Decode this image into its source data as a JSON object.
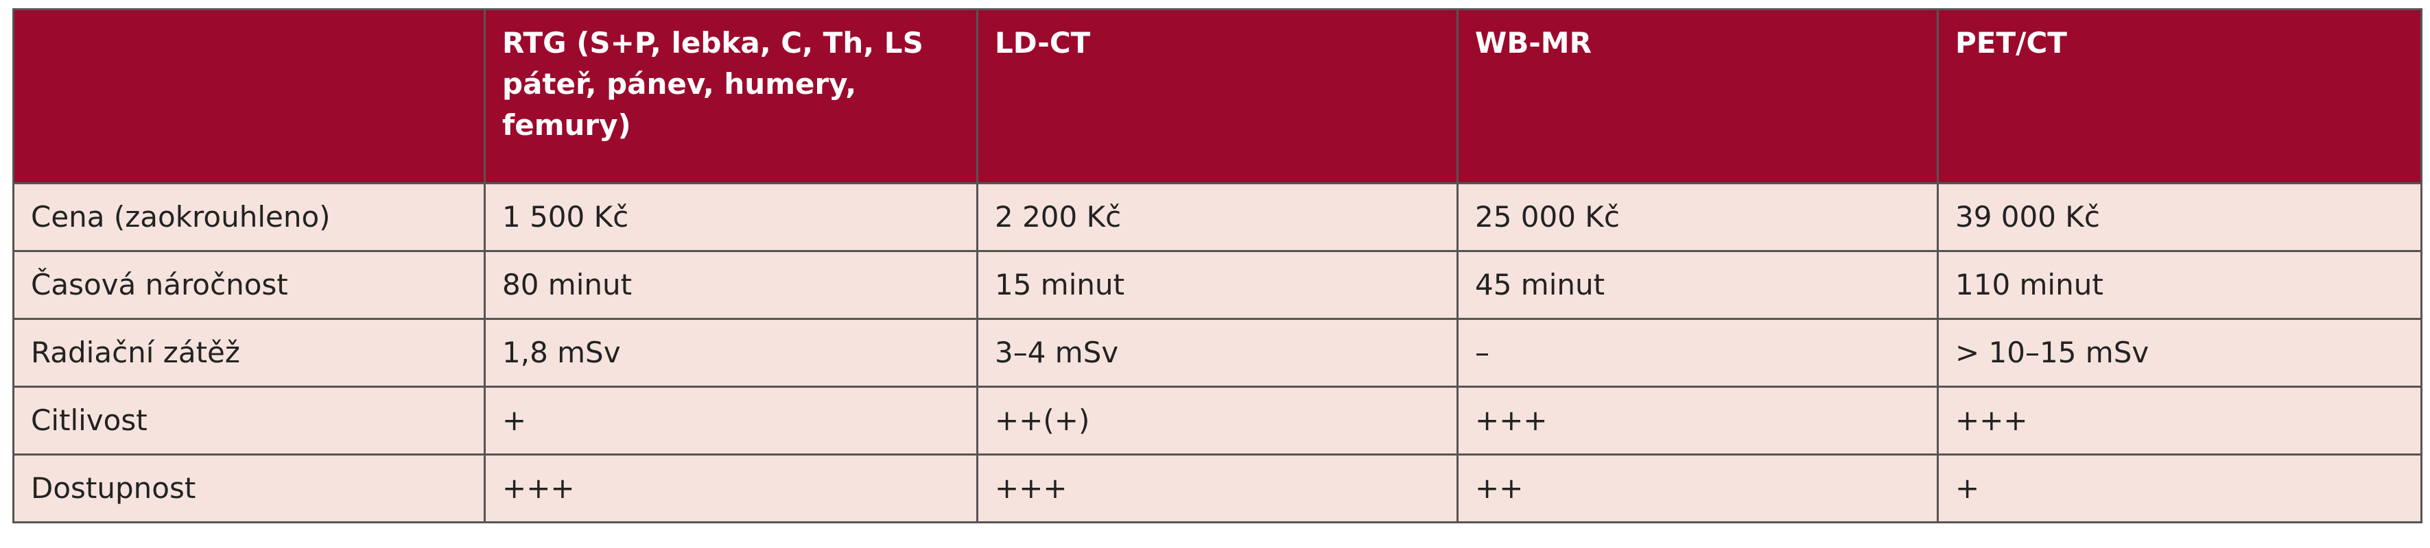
{
  "table": {
    "header": [
      "RTG (S+P, lebka, C, Th, LS páteř, pánev, humery, femury)",
      "LD-CT",
      "WB-MR",
      "PET/CT"
    ],
    "rows": [
      [
        "Cena (zaokrouhleno)",
        "1 500 Kč",
        "2 200 Kč",
        "25 000 Kč",
        "39 000 Kč"
      ],
      [
        "Časová náročnost",
        "80 minut",
        "15 minut",
        "45 minut",
        "110 minut"
      ],
      [
        "Radiační zátěž",
        "1,8 mSv",
        "3–4 mSv",
        "–",
        "> 10–15 mSv"
      ],
      [
        "Citlivost",
        "+",
        "++(+)",
        "+++",
        "+++"
      ],
      [
        "Dostupnost",
        "+++",
        "+++",
        "++",
        "+"
      ]
    ]
  }
}
